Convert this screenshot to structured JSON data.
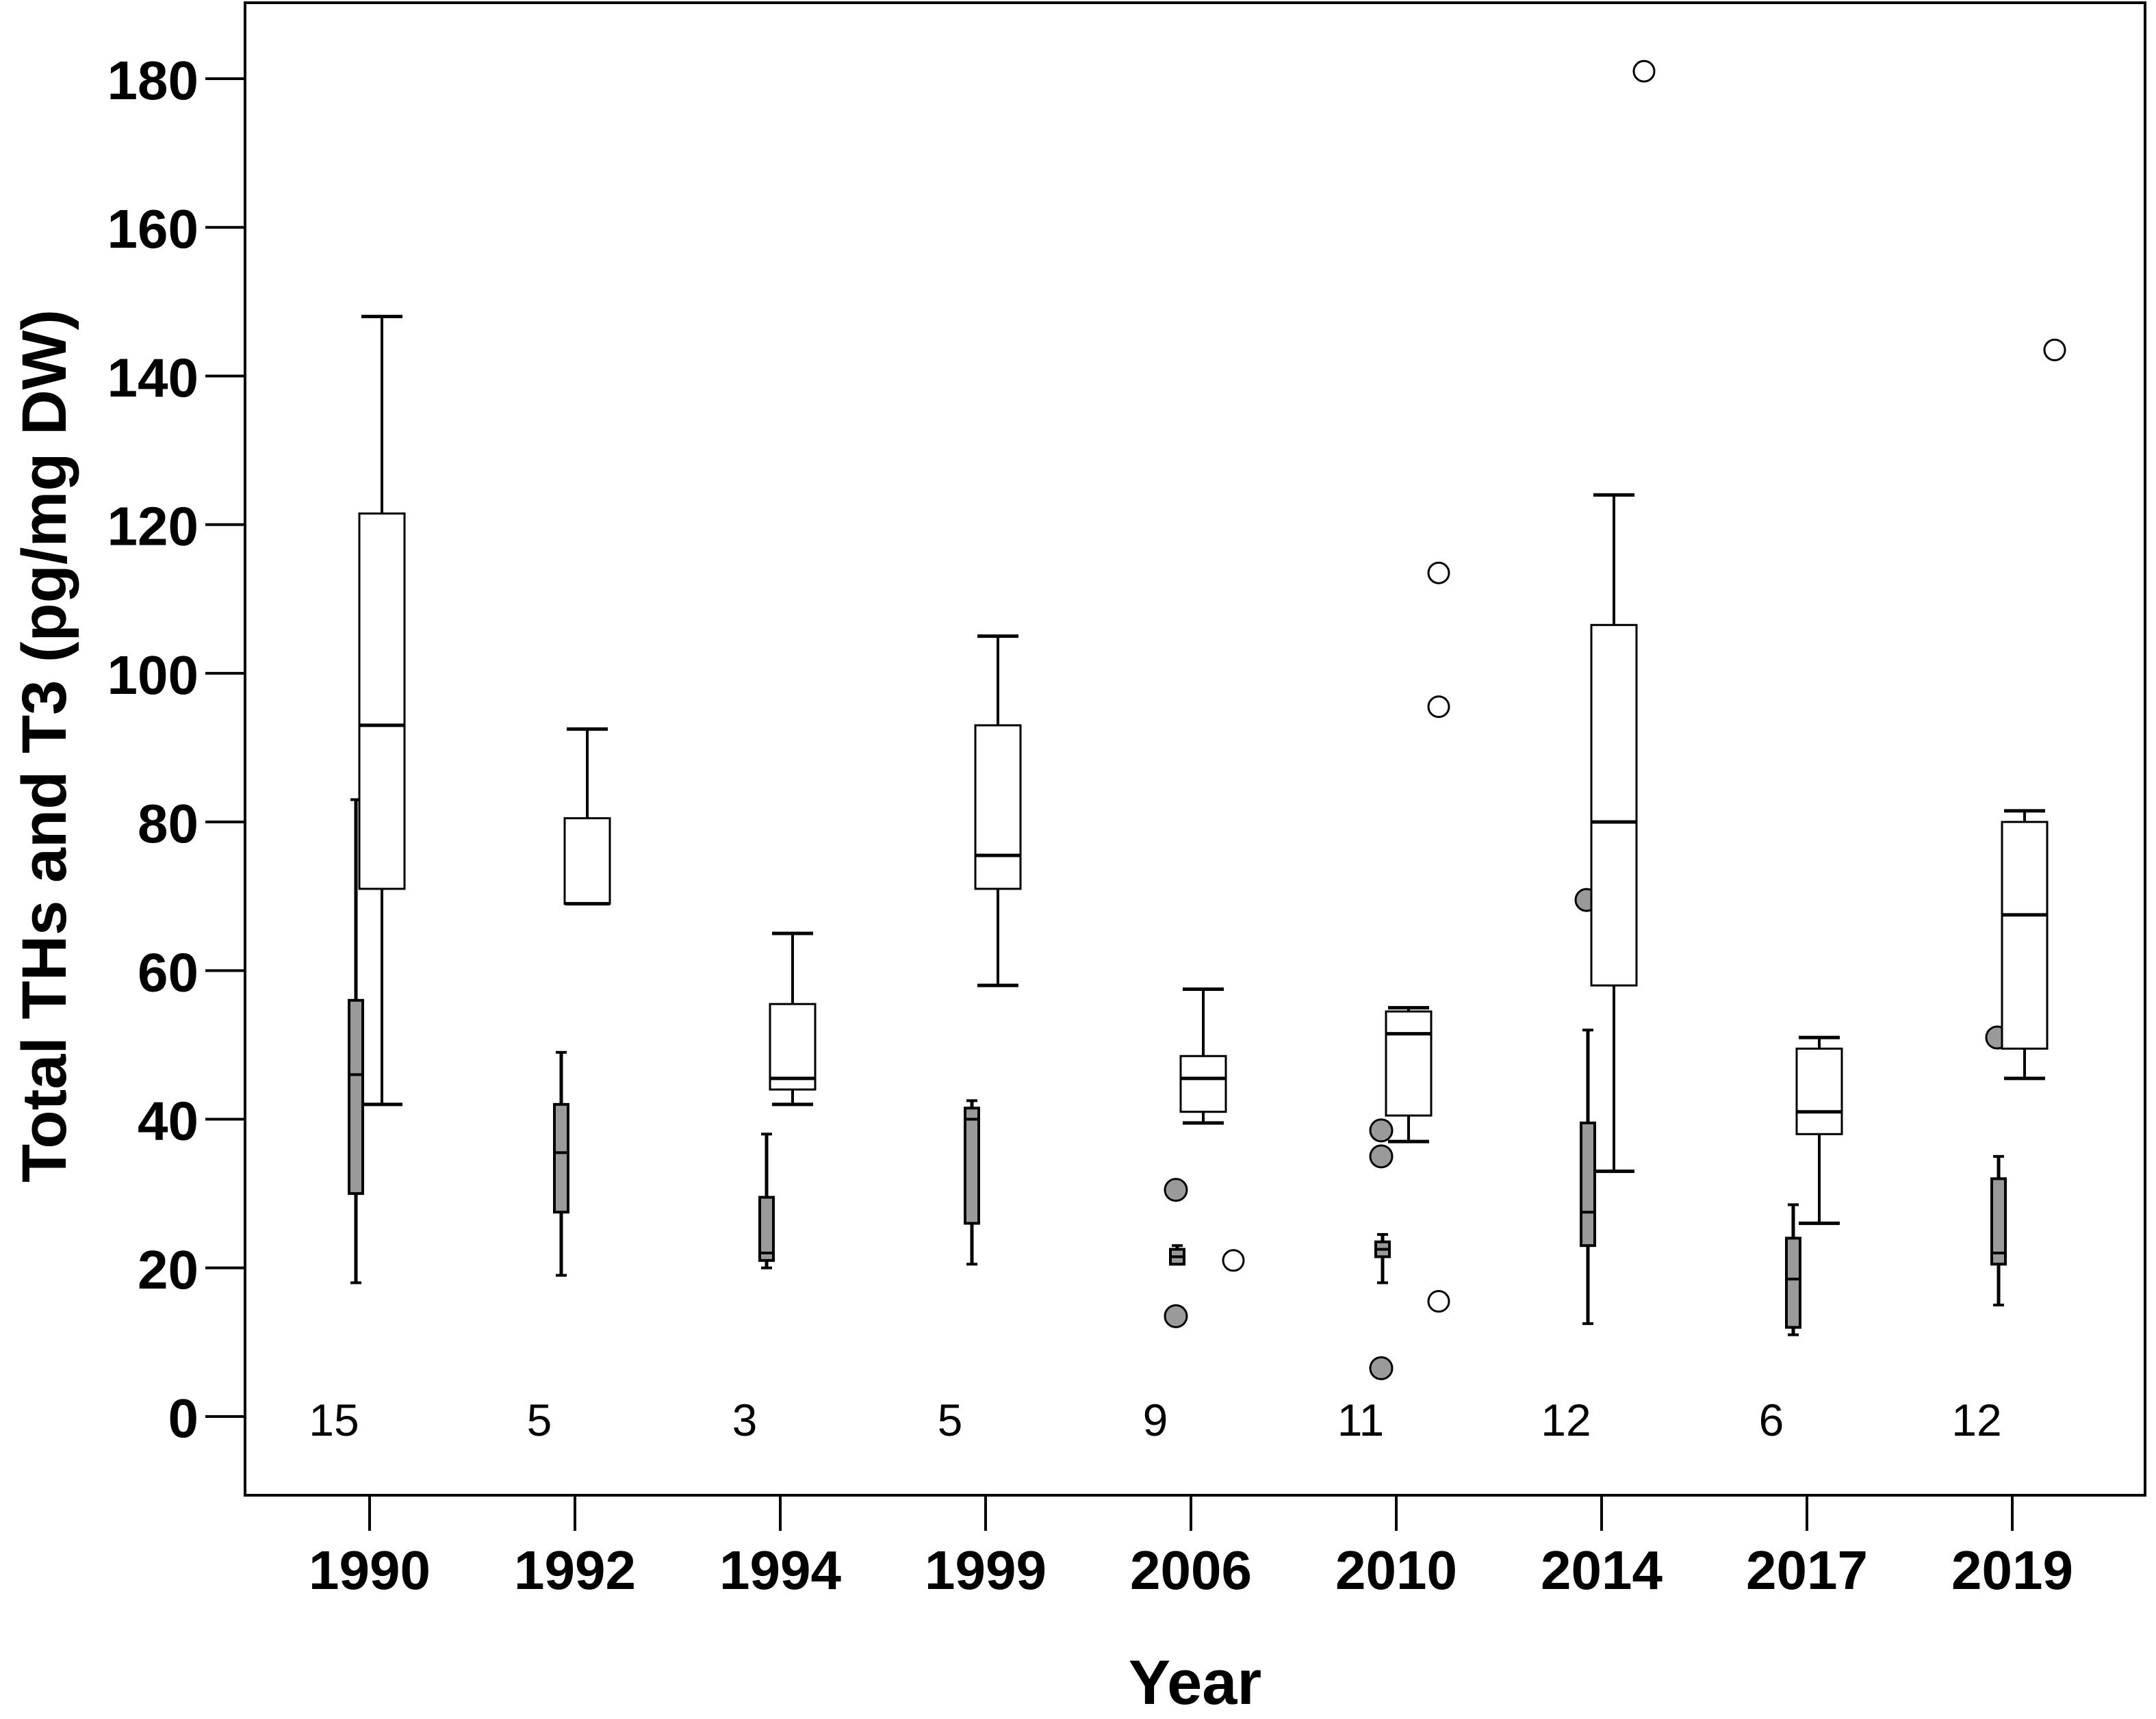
{
  "chart_data": {
    "type": "box",
    "xlabel": "Year",
    "ylabel": "Total THs and T3 (pg/mg DW)",
    "ylim": [
      -10,
      190
    ],
    "yticks": [
      0,
      20,
      40,
      60,
      80,
      100,
      120,
      140,
      160,
      180
    ],
    "categories": [
      "1990",
      "1992",
      "1994",
      "1999",
      "2006",
      "2010",
      "2014",
      "2017",
      "2019"
    ],
    "sample_sizes": [
      "15",
      "5",
      "3",
      "5",
      "9",
      "11",
      "12",
      "6",
      "12"
    ],
    "series": [
      {
        "fill": "#9a9a9a",
        "boxes": [
          {
            "category": "1990",
            "whisker_low": 18,
            "q1": 30,
            "median": 46,
            "q3": 56,
            "whisker_high": 83,
            "outliers": []
          },
          {
            "category": "1992",
            "whisker_low": 19,
            "q1": 27.5,
            "median": 35.5,
            "q3": 42,
            "whisker_high": 49,
            "outliers": []
          },
          {
            "category": "1994",
            "whisker_low": 20,
            "q1": 21,
            "median": 22,
            "q3": 29.5,
            "whisker_high": 38,
            "outliers": []
          },
          {
            "category": "1999",
            "whisker_low": 20.5,
            "q1": 26,
            "median": 40,
            "q3": 41.5,
            "whisker_high": 42.5,
            "outliers": []
          },
          {
            "category": "2006",
            "whisker_low": 20.5,
            "q1": 20.5,
            "median": 21.5,
            "q3": 22.5,
            "whisker_high": 23,
            "outliers": [
              13.5,
              30.5
            ]
          },
          {
            "category": "2010",
            "whisker_low": 18,
            "q1": 21.5,
            "median": 22.5,
            "q3": 23.5,
            "whisker_high": 24.5,
            "outliers": [
              6.5,
              35,
              38.5
            ]
          },
          {
            "category": "2014",
            "whisker_low": 12.5,
            "q1": 23,
            "median": 27.5,
            "q3": 39.5,
            "whisker_high": 52,
            "outliers": [
              69.5
            ]
          },
          {
            "category": "2017",
            "whisker_low": 11,
            "q1": 12,
            "median": 18.5,
            "q3": 24,
            "whisker_high": 28.5,
            "outliers": []
          },
          {
            "category": "2019",
            "whisker_low": 15,
            "q1": 20.5,
            "median": 22,
            "q3": 32,
            "whisker_high": 35,
            "outliers": [
              51
            ]
          }
        ]
      },
      {
        "fill": "#ffffff",
        "boxes": [
          {
            "category": "1990",
            "whisker_low": 42,
            "q1": 71,
            "median": 93,
            "q3": 121.5,
            "whisker_high": 148,
            "outliers": []
          },
          {
            "category": "1992",
            "whisker_low": 69,
            "q1": 69,
            "median": 69,
            "q3": 80.5,
            "whisker_high": 92.5,
            "outliers": []
          },
          {
            "category": "1994",
            "whisker_low": 42,
            "q1": 44,
            "median": 45.5,
            "q3": 55.5,
            "whisker_high": 65,
            "outliers": []
          },
          {
            "category": "1999",
            "whisker_low": 58,
            "q1": 71,
            "median": 75.5,
            "q3": 93,
            "whisker_high": 105,
            "outliers": []
          },
          {
            "category": "2006",
            "whisker_low": 39.5,
            "q1": 41,
            "median": 45.5,
            "q3": 48.5,
            "whisker_high": 57.5,
            "outliers": [
              21
            ]
          },
          {
            "category": "2010",
            "whisker_low": 37,
            "q1": 40.5,
            "median": 51.5,
            "q3": 54.5,
            "whisker_high": 55,
            "outliers": [
              15.5,
              95.5,
              113.5
            ]
          },
          {
            "category": "2014",
            "whisker_low": 33,
            "q1": 58,
            "median": 80,
            "q3": 106.5,
            "whisker_high": 124,
            "outliers": [
              181
            ]
          },
          {
            "category": "2017",
            "whisker_low": 26,
            "q1": 38,
            "median": 41,
            "q3": 49.5,
            "whisker_high": 51,
            "outliers": []
          },
          {
            "category": "2019",
            "whisker_low": 45.5,
            "q1": 49.5,
            "median": 67.5,
            "q3": 80,
            "whisker_high": 81.5,
            "outliers": [
              143.5
            ]
          }
        ]
      }
    ]
  }
}
